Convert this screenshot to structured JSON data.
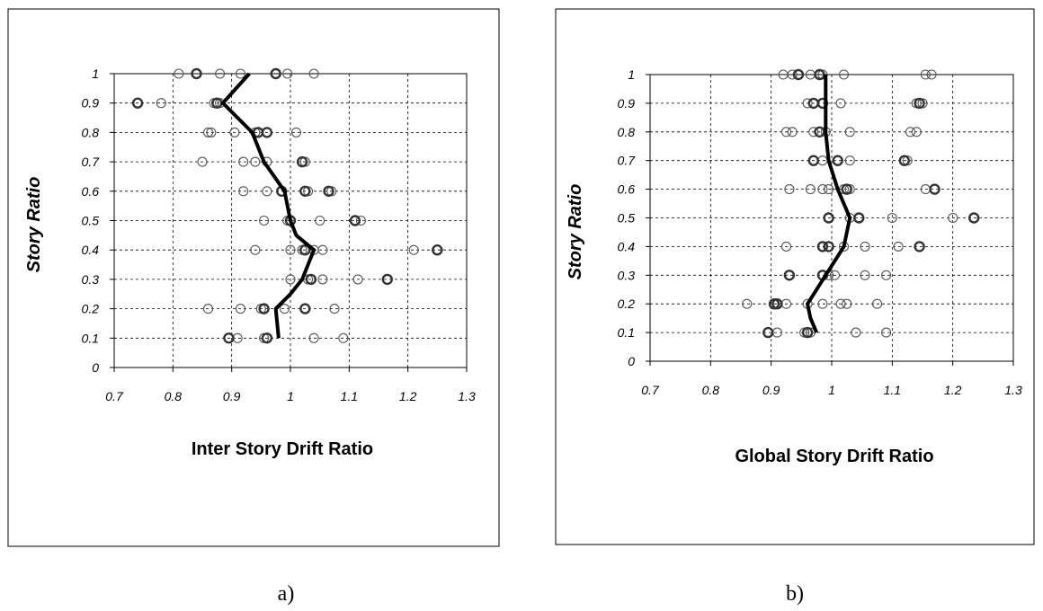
{
  "chart_data": [
    {
      "type": "scatter",
      "panel": "a)",
      "xlabel": "Inter Story Drift Ratio",
      "ylabel": "Story Ratio",
      "xlim": [
        0.7,
        1.3
      ],
      "ylim": [
        0,
        1
      ],
      "xticks": [
        "0.7",
        "0.8",
        "0.9",
        "1",
        "1.1",
        "1.2",
        "1.3"
      ],
      "yticks": [
        "0",
        "0.1",
        "0.2",
        "0.3",
        "0.4",
        "0.5",
        "0.6",
        "0.7",
        "0.8",
        "0.9",
        "1"
      ],
      "grid": true,
      "series": [
        {
          "kind": "scatter-thin",
          "points": [
            [
              0.81,
              1
            ],
            [
              0.84,
              1
            ],
            [
              0.88,
              1
            ],
            [
              0.915,
              1
            ],
            [
              0.975,
              1
            ],
            [
              0.995,
              1
            ],
            [
              1.04,
              1
            ],
            [
              0.74,
              0.9
            ],
            [
              0.78,
              0.9
            ],
            [
              0.87,
              0.9
            ],
            [
              0.88,
              0.9
            ],
            [
              0.86,
              0.8
            ],
            [
              0.865,
              0.8
            ],
            [
              0.905,
              0.8
            ],
            [
              0.94,
              0.8
            ],
            [
              0.945,
              0.8
            ],
            [
              0.96,
              0.8
            ],
            [
              1.01,
              0.8
            ],
            [
              0.85,
              0.7
            ],
            [
              0.92,
              0.7
            ],
            [
              0.94,
              0.7
            ],
            [
              0.96,
              0.7
            ],
            [
              1.02,
              0.7
            ],
            [
              1.025,
              0.7
            ],
            [
              0.92,
              0.6
            ],
            [
              0.96,
              0.6
            ],
            [
              0.985,
              0.6
            ],
            [
              1.025,
              0.6
            ],
            [
              1.03,
              0.6
            ],
            [
              1.065,
              0.6
            ],
            [
              1.07,
              0.6
            ],
            [
              0.955,
              0.5
            ],
            [
              0.995,
              0.5
            ],
            [
              1.05,
              0.5
            ],
            [
              1.11,
              0.5
            ],
            [
              1.12,
              0.5
            ],
            [
              0.94,
              0.4
            ],
            [
              1.0,
              0.4
            ],
            [
              1.02,
              0.4
            ],
            [
              1.04,
              0.4
            ],
            [
              1.055,
              0.4
            ],
            [
              1.21,
              0.4
            ],
            [
              1.25,
              0.4
            ],
            [
              1.0,
              0.3
            ],
            [
              1.03,
              0.3
            ],
            [
              1.055,
              0.3
            ],
            [
              1.115,
              0.3
            ],
            [
              1.165,
              0.3
            ],
            [
              0.86,
              0.2
            ],
            [
              0.915,
              0.2
            ],
            [
              0.95,
              0.2
            ],
            [
              0.955,
              0.2
            ],
            [
              0.99,
              0.2
            ],
            [
              1.025,
              0.2
            ],
            [
              1.075,
              0.2
            ],
            [
              0.895,
              0.1
            ],
            [
              0.91,
              0.1
            ],
            [
              0.955,
              0.1
            ],
            [
              0.96,
              0.1
            ],
            [
              1.04,
              0.1
            ],
            [
              1.09,
              0.1
            ]
          ]
        },
        {
          "kind": "scatter-thick",
          "points": [
            [
              0.84,
              1
            ],
            [
              0.975,
              1
            ],
            [
              0.74,
              0.9
            ],
            [
              0.875,
              0.9
            ],
            [
              0.945,
              0.8
            ],
            [
              0.96,
              0.8
            ],
            [
              1.02,
              0.7
            ],
            [
              0.985,
              0.6
            ],
            [
              1.025,
              0.6
            ],
            [
              1.065,
              0.6
            ],
            [
              1.0,
              0.5
            ],
            [
              1.11,
              0.5
            ],
            [
              1.025,
              0.4
            ],
            [
              1.25,
              0.4
            ],
            [
              1.035,
              0.3
            ],
            [
              1.165,
              0.3
            ],
            [
              0.955,
              0.2
            ],
            [
              1.025,
              0.2
            ],
            [
              0.895,
              0.1
            ],
            [
              0.96,
              0.1
            ]
          ]
        },
        {
          "kind": "mean-line",
          "points": [
            [
              0.98,
              0.1
            ],
            [
              0.975,
              0.2
            ],
            [
              1.0,
              0.25
            ],
            [
              1.02,
              0.3
            ],
            [
              1.04,
              0.4
            ],
            [
              1.01,
              0.45
            ],
            [
              1.0,
              0.5
            ],
            [
              0.995,
              0.55
            ],
            [
              0.99,
              0.6
            ],
            [
              0.955,
              0.7
            ],
            [
              0.935,
              0.8
            ],
            [
              0.885,
              0.9
            ],
            [
              0.93,
              1.0
            ]
          ]
        }
      ]
    },
    {
      "type": "scatter",
      "panel": "b)",
      "xlabel": "Global Story Drift Ratio",
      "ylabel": "Story Ratio",
      "xlim": [
        0.7,
        1.3
      ],
      "ylim": [
        0,
        1
      ],
      "xticks": [
        "0.7",
        "0.8",
        "0.9",
        "1",
        "1.1",
        "1.2",
        "1.3"
      ],
      "yticks": [
        "0",
        "0.1",
        "0.2",
        "0.3",
        "0.4",
        "0.5",
        "0.6",
        "0.7",
        "0.8",
        "0.9",
        "1"
      ],
      "grid": true,
      "series": [
        {
          "kind": "scatter-thin",
          "points": [
            [
              0.92,
              1
            ],
            [
              0.935,
              1
            ],
            [
              0.945,
              1
            ],
            [
              0.965,
              1
            ],
            [
              0.98,
              1
            ],
            [
              0.985,
              1
            ],
            [
              1.02,
              1
            ],
            [
              1.155,
              1
            ],
            [
              1.165,
              1
            ],
            [
              0.96,
              0.9
            ],
            [
              0.97,
              0.9
            ],
            [
              0.985,
              0.9
            ],
            [
              1.015,
              0.9
            ],
            [
              1.14,
              0.9
            ],
            [
              1.15,
              0.9
            ],
            [
              0.925,
              0.8
            ],
            [
              0.935,
              0.8
            ],
            [
              0.97,
              0.8
            ],
            [
              0.98,
              0.8
            ],
            [
              0.99,
              0.8
            ],
            [
              1.03,
              0.8
            ],
            [
              1.13,
              0.8
            ],
            [
              1.14,
              0.8
            ],
            [
              0.97,
              0.7
            ],
            [
              0.985,
              0.7
            ],
            [
              1.01,
              0.7
            ],
            [
              1.03,
              0.7
            ],
            [
              1.12,
              0.7
            ],
            [
              1.125,
              0.7
            ],
            [
              0.93,
              0.6
            ],
            [
              0.965,
              0.6
            ],
            [
              0.985,
              0.6
            ],
            [
              0.995,
              0.6
            ],
            [
              1.02,
              0.6
            ],
            [
              1.03,
              0.6
            ],
            [
              1.155,
              0.6
            ],
            [
              1.17,
              0.6
            ],
            [
              0.995,
              0.5
            ],
            [
              1.03,
              0.5
            ],
            [
              1.045,
              0.5
            ],
            [
              1.1,
              0.5
            ],
            [
              1.2,
              0.5
            ],
            [
              1.235,
              0.5
            ],
            [
              0.925,
              0.4
            ],
            [
              0.985,
              0.4
            ],
            [
              0.995,
              0.4
            ],
            [
              1.02,
              0.4
            ],
            [
              1.055,
              0.4
            ],
            [
              1.11,
              0.4
            ],
            [
              1.145,
              0.4
            ],
            [
              0.93,
              0.3
            ],
            [
              0.985,
              0.3
            ],
            [
              0.995,
              0.3
            ],
            [
              1.005,
              0.3
            ],
            [
              1.055,
              0.3
            ],
            [
              1.09,
              0.3
            ],
            [
              0.86,
              0.2
            ],
            [
              0.905,
              0.2
            ],
            [
              0.91,
              0.2
            ],
            [
              0.925,
              0.2
            ],
            [
              0.96,
              0.2
            ],
            [
              0.985,
              0.2
            ],
            [
              1.015,
              0.2
            ],
            [
              1.025,
              0.2
            ],
            [
              1.075,
              0.2
            ],
            [
              0.895,
              0.1
            ],
            [
              0.91,
              0.1
            ],
            [
              0.955,
              0.1
            ],
            [
              0.965,
              0.1
            ],
            [
              1.04,
              0.1
            ],
            [
              1.09,
              0.1
            ]
          ]
        },
        {
          "kind": "scatter-thick",
          "points": [
            [
              0.945,
              1
            ],
            [
              0.98,
              1
            ],
            [
              0.97,
              0.9
            ],
            [
              0.985,
              0.9
            ],
            [
              1.145,
              0.9
            ],
            [
              0.98,
              0.8
            ],
            [
              0.97,
              0.7
            ],
            [
              1.01,
              0.7
            ],
            [
              1.12,
              0.7
            ],
            [
              1.025,
              0.6
            ],
            [
              1.17,
              0.6
            ],
            [
              0.995,
              0.5
            ],
            [
              1.045,
              0.5
            ],
            [
              1.235,
              0.5
            ],
            [
              0.985,
              0.4
            ],
            [
              0.995,
              0.4
            ],
            [
              1.145,
              0.4
            ],
            [
              0.93,
              0.3
            ],
            [
              0.985,
              0.3
            ],
            [
              0.905,
              0.2
            ],
            [
              0.91,
              0.2
            ],
            [
              0.895,
              0.1
            ],
            [
              0.96,
              0.1
            ]
          ]
        },
        {
          "kind": "mean-line",
          "points": [
            [
              0.975,
              0.1
            ],
            [
              0.965,
              0.15
            ],
            [
              0.96,
              0.2
            ],
            [
              0.975,
              0.25
            ],
            [
              0.99,
              0.3
            ],
            [
              1.005,
              0.35
            ],
            [
              1.02,
              0.4
            ],
            [
              1.03,
              0.5
            ],
            [
              1.01,
              0.6
            ],
            [
              0.995,
              0.7
            ],
            [
              0.99,
              0.8
            ],
            [
              0.99,
              0.9
            ],
            [
              0.99,
              1.0
            ]
          ]
        }
      ]
    }
  ]
}
